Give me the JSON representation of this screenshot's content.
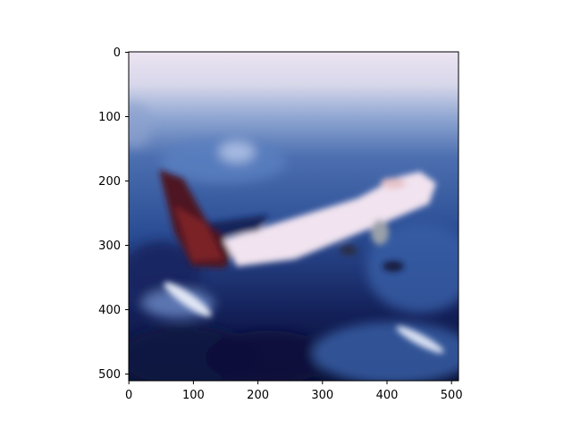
{
  "figure": {
    "image_subject": "blurred photo of a white airplane with dark red tail flying above blue clouds",
    "x_axis": {
      "range": [
        0,
        512
      ],
      "ticks": [
        "0",
        "100",
        "200",
        "300",
        "400",
        "500"
      ]
    },
    "y_axis": {
      "range": [
        0,
        512
      ],
      "inverted": true,
      "ticks": [
        "0",
        "100",
        "200",
        "300",
        "400",
        "500"
      ]
    },
    "colors": {
      "sky_top": "#e9e2f1",
      "sky_mid": "#6f8fc4",
      "cloud_dark": "#0c1540",
      "cloud_blue": "#3d63a8",
      "fuselage": "#f1e3ef",
      "tail": "#5a1a1e"
    }
  }
}
